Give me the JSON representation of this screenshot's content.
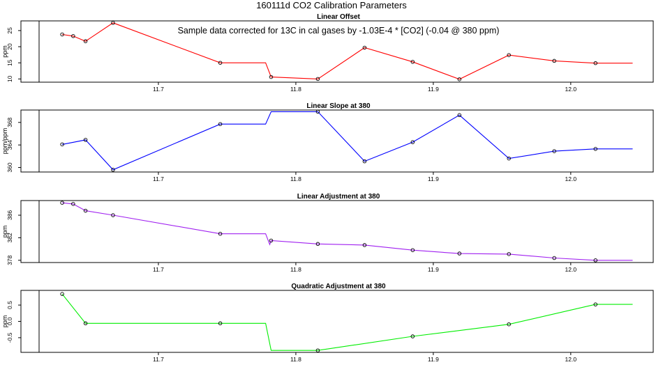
{
  "figure": {
    "title": "160111d   CO2 Calibration Parameters",
    "annotation": "Sample data corrected for 13C in cal gases by -1.03E-4 * [CO2] (-0.04 @ 380 ppm)"
  },
  "chart_data": [
    {
      "type": "line",
      "title": "Linear Offset",
      "ylabel": "ppm",
      "xlim": [
        11.6,
        12.06
      ],
      "ylim": [
        9,
        28
      ],
      "yticks": [
        10,
        15,
        20,
        25
      ],
      "xticks": [
        11.7,
        11.8,
        11.9,
        12.0
      ],
      "color": "#ff0000",
      "line": [
        [
          11.63,
          23.8
        ],
        [
          11.638,
          23.3
        ],
        [
          11.647,
          21.7
        ],
        [
          11.667,
          27.4
        ],
        [
          11.745,
          15.0
        ],
        [
          11.778,
          15.0
        ],
        [
          11.782,
          10.6
        ],
        [
          11.816,
          10.0
        ],
        [
          11.85,
          19.7
        ],
        [
          11.885,
          15.3
        ],
        [
          11.919,
          9.9
        ],
        [
          11.955,
          17.4
        ],
        [
          11.988,
          15.6
        ],
        [
          12.018,
          14.9
        ],
        [
          12.045,
          14.9
        ]
      ],
      "points": [
        [
          11.63,
          23.8
        ],
        [
          11.638,
          23.3
        ],
        [
          11.647,
          21.7
        ],
        [
          11.667,
          27.4
        ],
        [
          11.745,
          15.0
        ],
        [
          11.782,
          10.6
        ],
        [
          11.816,
          10.0
        ],
        [
          11.85,
          19.7
        ],
        [
          11.885,
          15.3
        ],
        [
          11.919,
          9.9
        ],
        [
          11.955,
          17.4
        ],
        [
          11.988,
          15.6
        ],
        [
          12.018,
          14.9
        ]
      ]
    },
    {
      "type": "line",
      "title": "Linear Slope at 380",
      "ylabel": "ppm/ppm",
      "xlim": [
        11.6,
        12.06
      ],
      "ylim": [
        359.2,
        370.2
      ],
      "yticks": [
        360,
        364,
        368
      ],
      "xticks": [
        11.7,
        11.8,
        11.9,
        12.0
      ],
      "color": "#0000ff",
      "line": [
        [
          11.63,
          364.1
        ],
        [
          11.647,
          364.9
        ],
        [
          11.667,
          359.6
        ],
        [
          11.745,
          367.7
        ],
        [
          11.778,
          367.7
        ],
        [
          11.782,
          369.9
        ],
        [
          11.816,
          369.9
        ],
        [
          11.85,
          361.1
        ],
        [
          11.885,
          364.5
        ],
        [
          11.919,
          369.3
        ],
        [
          11.955,
          361.6
        ],
        [
          11.988,
          362.9
        ],
        [
          12.018,
          363.3
        ],
        [
          12.045,
          363.3
        ]
      ],
      "points": [
        [
          11.63,
          364.1
        ],
        [
          11.647,
          364.9
        ],
        [
          11.667,
          359.6
        ],
        [
          11.745,
          367.7
        ],
        [
          11.816,
          369.9
        ],
        [
          11.85,
          361.1
        ],
        [
          11.885,
          364.5
        ],
        [
          11.919,
          369.3
        ],
        [
          11.955,
          361.6
        ],
        [
          11.988,
          362.9
        ],
        [
          12.018,
          363.3
        ]
      ]
    },
    {
      "type": "line",
      "title": "Linear Adjustment at 380",
      "ylabel": "ppm",
      "xlim": [
        11.6,
        12.06
      ],
      "ylim": [
        377.6,
        388.6
      ],
      "yticks": [
        378,
        382,
        386
      ],
      "xticks": [
        11.7,
        11.8,
        11.9,
        12.0
      ],
      "color": "#a020f0",
      "line": [
        [
          11.63,
          388.2
        ],
        [
          11.638,
          388.0
        ],
        [
          11.647,
          386.8
        ],
        [
          11.667,
          386.0
        ],
        [
          11.745,
          382.7
        ],
        [
          11.778,
          382.7
        ],
        [
          11.781,
          380.8
        ],
        [
          11.782,
          381.5
        ],
        [
          11.816,
          380.9
        ],
        [
          11.85,
          380.7
        ],
        [
          11.885,
          379.8
        ],
        [
          11.919,
          379.2
        ],
        [
          11.955,
          379.1
        ],
        [
          11.988,
          378.4
        ],
        [
          12.018,
          378.0
        ],
        [
          12.045,
          378.0
        ]
      ],
      "points": [
        [
          11.63,
          388.2
        ],
        [
          11.638,
          388.0
        ],
        [
          11.647,
          386.8
        ],
        [
          11.667,
          386.0
        ],
        [
          11.745,
          382.7
        ],
        [
          11.782,
          381.5
        ],
        [
          11.816,
          380.9
        ],
        [
          11.85,
          380.7
        ],
        [
          11.885,
          379.8
        ],
        [
          11.919,
          379.2
        ],
        [
          11.955,
          379.1
        ],
        [
          11.988,
          378.4
        ],
        [
          12.018,
          378.0
        ]
      ]
    },
    {
      "type": "line",
      "title": "Quadratic Adjustment at 380",
      "ylabel": "ppm",
      "xlim": [
        11.6,
        12.06
      ],
      "ylim": [
        -0.95,
        0.95
      ],
      "yticks": [
        -0.5,
        0.0,
        0.5
      ],
      "xticks": [
        11.7,
        11.8,
        11.9,
        12.0
      ],
      "color": "#00ee00",
      "line": [
        [
          11.63,
          0.84
        ],
        [
          11.647,
          -0.06
        ],
        [
          11.745,
          -0.06
        ],
        [
          11.778,
          -0.06
        ],
        [
          11.782,
          -0.89
        ],
        [
          11.816,
          -0.89
        ],
        [
          11.885,
          -0.46
        ],
        [
          11.955,
          -0.09
        ],
        [
          12.018,
          0.52
        ],
        [
          12.045,
          0.52
        ]
      ],
      "points": [
        [
          11.63,
          0.84
        ],
        [
          11.647,
          -0.06
        ],
        [
          11.745,
          -0.06
        ],
        [
          11.816,
          -0.89
        ],
        [
          11.885,
          -0.46
        ],
        [
          11.955,
          -0.09
        ],
        [
          12.018,
          0.52
        ]
      ]
    }
  ]
}
